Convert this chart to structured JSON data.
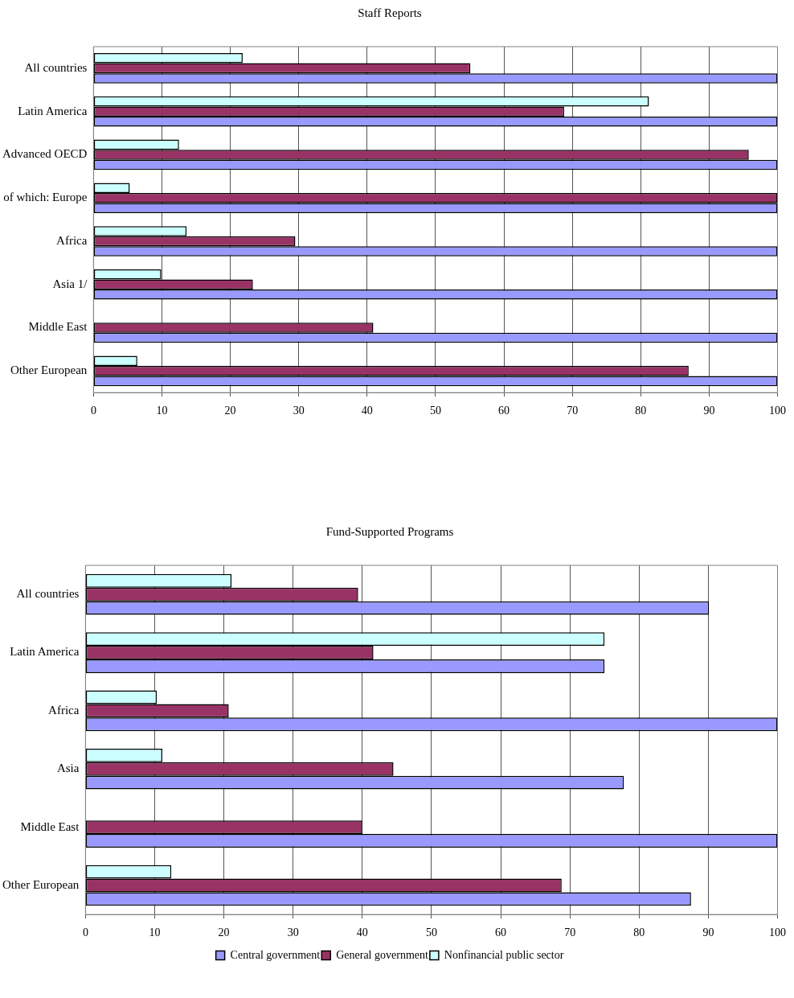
{
  "chart_data": [
    {
      "type": "bar",
      "title": "Staff Reports",
      "orientation": "horizontal",
      "categories": [
        "All countries",
        "Latin America",
        "Advanced OECD",
        "of which: Europe",
        "Africa",
        "Asia 1/",
        "Middle East",
        "Other European"
      ],
      "series": [
        {
          "color": "#9999ff",
          "values": [
            100,
            100,
            100,
            100,
            100,
            100,
            100,
            100
          ]
        },
        {
          "color": "#993366",
          "values": [
            55.1,
            68.8,
            95.8,
            100,
            29.5,
            23.3,
            40.9,
            87
          ]
        },
        {
          "color": "#ccffff",
          "values": [
            21.8,
            81.2,
            12.5,
            5.3,
            13.6,
            9.9,
            null,
            6.4
          ]
        }
      ],
      "xlim": [
        0,
        100
      ],
      "xticks": [
        0,
        10,
        20,
        30,
        40,
        50,
        60,
        70,
        80,
        90,
        100
      ],
      "grid": "x",
      "legend": false
    },
    {
      "type": "bar",
      "title": "Fund-Supported Programs",
      "orientation": "horizontal",
      "categories": [
        "All countries",
        "Latin America",
        "Africa",
        "Asia",
        "Middle East",
        "Other European"
      ],
      "series": [
        {
          "name": "Central government",
          "color": "#9999ff",
          "values": [
            90.1,
            75,
            100,
            77.8,
            100,
            87.5
          ]
        },
        {
          "name": "General government",
          "color": "#993366",
          "values": [
            39.4,
            41.6,
            20.7,
            44.5,
            40,
            68.8
          ]
        },
        {
          "name": "Nonfinancial public sector",
          "color": "#ccffff",
          "values": [
            21.1,
            75,
            10.3,
            11.1,
            null,
            12.4
          ]
        }
      ],
      "xlim": [
        0,
        100
      ],
      "xticks": [
        0,
        10,
        20,
        30,
        40,
        50,
        60,
        70,
        80,
        90,
        100
      ],
      "grid": "x",
      "legend": "bottom"
    }
  ]
}
